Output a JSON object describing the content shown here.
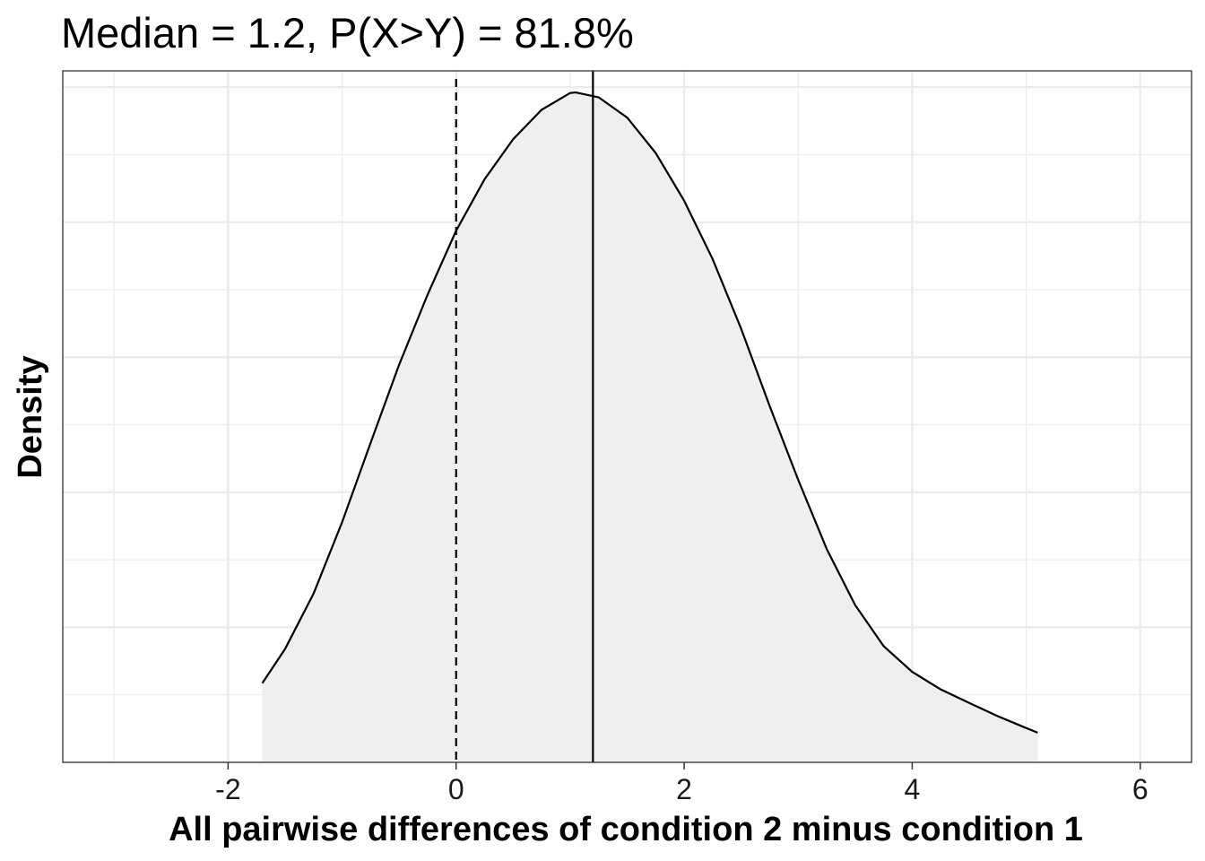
{
  "chart_data": {
    "type": "area",
    "title": "Median = 1.2, P(X>Y) = 81.8%",
    "xlabel": "All pairwise differences of condition 2 minus condition 1",
    "ylabel": "Density",
    "xlim": [
      -3.45,
      6.45
    ],
    "ylim": [
      0,
      0.256
    ],
    "x_ticks": [
      -2,
      0,
      2,
      4,
      6
    ],
    "x_tick_labels": [
      "-2",
      "0",
      "2",
      "4",
      "6"
    ],
    "y_tick_labels": [],
    "grid": true,
    "series": [
      {
        "x": [
          -1.7,
          -1.5,
          -1.25,
          -1.0,
          -0.75,
          -0.5,
          -0.25,
          0.0,
          0.25,
          0.5,
          0.75,
          1.0,
          1.05,
          1.25,
          1.5,
          1.75,
          2.0,
          2.25,
          2.5,
          2.75,
          3.0,
          3.25,
          3.5,
          3.75,
          4.0,
          4.25,
          4.5,
          4.75,
          5.0,
          5.1
        ],
        "y": [
          0.0293,
          0.042,
          0.0625,
          0.0889,
          0.1183,
          0.1472,
          0.1732,
          0.1968,
          0.2159,
          0.2307,
          0.2416,
          0.2478,
          0.248,
          0.2462,
          0.2387,
          0.2256,
          0.2079,
          0.1863,
          0.1605,
          0.1319,
          0.1046,
          0.079,
          0.0582,
          0.043,
          0.0335,
          0.027,
          0.022,
          0.0171,
          0.0127,
          0.011
        ]
      }
    ],
    "reference_lines": [
      {
        "x": 0,
        "style": "dashed"
      },
      {
        "x": 1.2,
        "style": "solid"
      }
    ],
    "colors": {
      "fill": "#efefef",
      "line": "#000000",
      "grid": "#ebebeb",
      "border": "#333333"
    }
  }
}
